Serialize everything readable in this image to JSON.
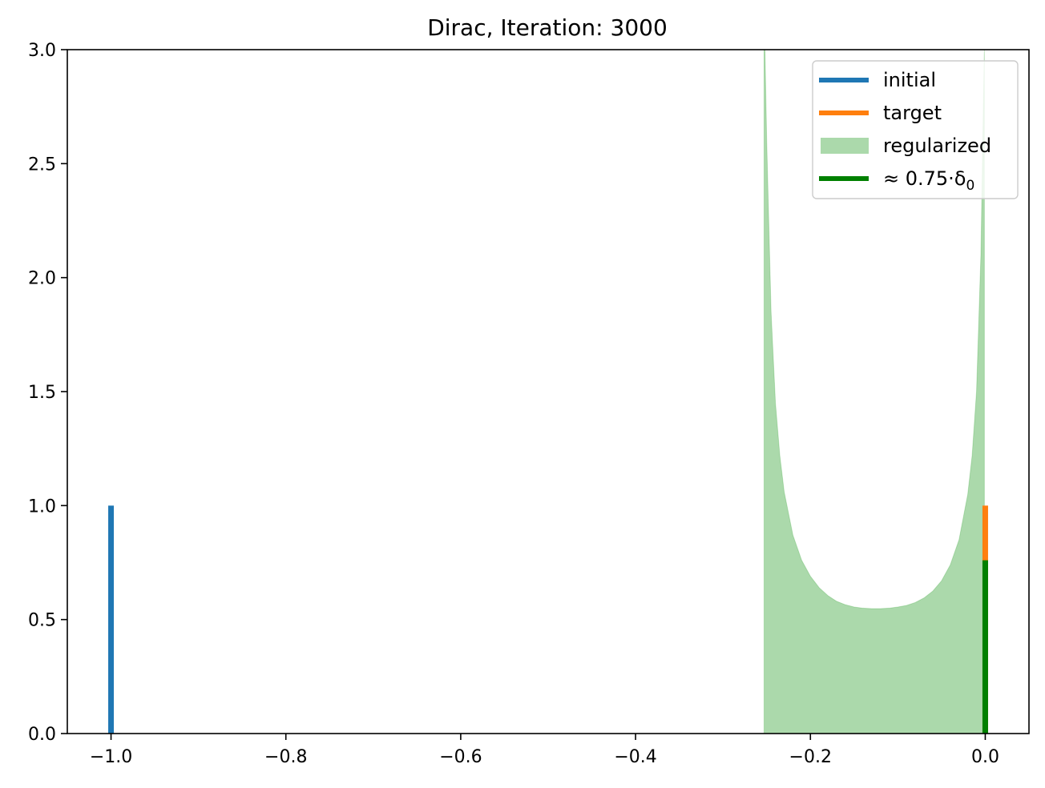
{
  "chart_data": {
    "type": "line",
    "title": "Dirac, Iteration: 3000",
    "xlabel": "",
    "ylabel": "",
    "xlim": [
      -1.05,
      0.05
    ],
    "ylim": [
      0,
      3.0
    ],
    "x_ticks": [
      -1.0,
      -0.8,
      -0.6,
      -0.4,
      -0.2,
      0.0
    ],
    "x_tick_labels": [
      "−1.0",
      "−0.8",
      "−0.6",
      "−0.4",
      "−0.2",
      "0.0"
    ],
    "y_ticks": [
      0.0,
      0.5,
      1.0,
      1.5,
      2.0,
      2.5,
      3.0
    ],
    "y_tick_labels": [
      "0.0",
      "0.5",
      "1.0",
      "1.5",
      "2.0",
      "2.5",
      "3.0"
    ],
    "grid": false,
    "legend_position": "top-right",
    "series": [
      {
        "name": "initial",
        "kind": "spike",
        "x": -1.0,
        "height": 1.0,
        "color": "#1f77b4"
      },
      {
        "name": "target",
        "kind": "spike",
        "x": 0.0,
        "height": 1.0,
        "color": "#ff7f0e"
      },
      {
        "name": "regularized",
        "kind": "filled-density",
        "color": "#2ca02c",
        "alpha": 0.4,
        "x": [
          -0.253,
          -0.252,
          -0.25,
          -0.245,
          -0.24,
          -0.235,
          -0.23,
          -0.22,
          -0.21,
          -0.2,
          -0.19,
          -0.18,
          -0.17,
          -0.16,
          -0.15,
          -0.14,
          -0.13,
          -0.12,
          -0.11,
          -0.1,
          -0.09,
          -0.08,
          -0.07,
          -0.06,
          -0.05,
          -0.04,
          -0.03,
          -0.02,
          -0.015,
          -0.01,
          -0.005,
          -0.002,
          -0.001
        ],
        "y": [
          3.0,
          3.0,
          2.6,
          1.85,
          1.45,
          1.22,
          1.06,
          0.87,
          0.76,
          0.69,
          0.64,
          0.605,
          0.58,
          0.565,
          0.555,
          0.55,
          0.548,
          0.548,
          0.55,
          0.555,
          0.562,
          0.575,
          0.595,
          0.625,
          0.67,
          0.74,
          0.85,
          1.05,
          1.22,
          1.5,
          2.1,
          2.8,
          3.0
        ]
      },
      {
        "name": "≈ 0.75·δ₀",
        "legend_main": "≈  0.75·δ",
        "legend_sub": "0",
        "kind": "spike",
        "x": 0.0,
        "height": 0.76,
        "color": "#008000"
      }
    ]
  }
}
